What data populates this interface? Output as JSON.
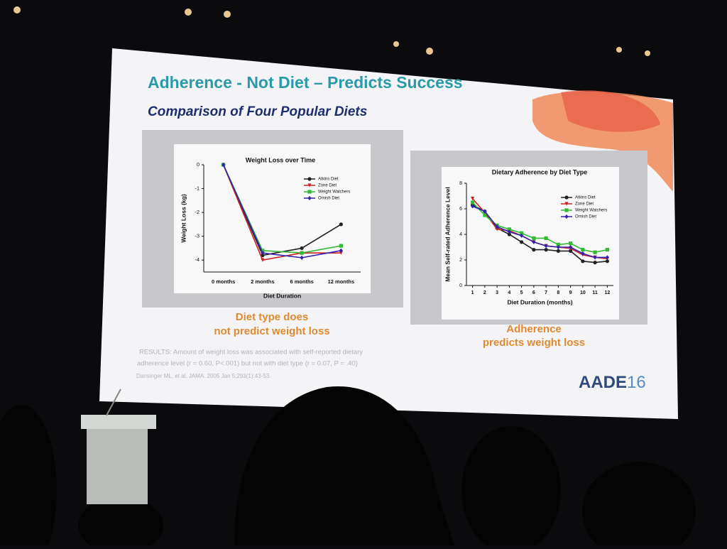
{
  "title": "Adherence - Not Diet – Predicts Success",
  "subtitle": "Comparison of Four Popular Diets",
  "caption_left": [
    "Diet type does",
    "not predict weight loss"
  ],
  "caption_right": [
    "Adherence",
    "predicts weight loss"
  ],
  "results": [
    "RESULTS: Amount of weight loss was associated with self-reported dietary",
    "adherence level (r = 0.60, P<.001) but not with diet type (r = 0.07, P = .40)"
  ],
  "citation": "Dansinger ML, et al. JAMA. 2005 Jan 5;293(1):43-53.",
  "logo": {
    "name": "AADE",
    "year": "16"
  },
  "chart_data": [
    {
      "type": "line",
      "title": "Weight Loss over Time",
      "xlabel": "Diet Duration",
      "ylabel": "Weight Loss (kg)",
      "categories": [
        "0 months",
        "2 months",
        "6 months",
        "12 months"
      ],
      "ylim": [
        -4.5,
        0
      ],
      "yticks": [
        0,
        -1,
        -2,
        -3,
        -4
      ],
      "legend": "upper right",
      "series": [
        {
          "name": "Atkins Diet",
          "color": "#222222",
          "marker": "circle",
          "values": [
            0,
            -3.8,
            -3.5,
            -2.5
          ]
        },
        {
          "name": "Zone Diet",
          "color": "#cc2222",
          "marker": "triangle",
          "values": [
            0,
            -4.0,
            -3.7,
            -3.7
          ]
        },
        {
          "name": "Weight Watchers",
          "color": "#33bb33",
          "marker": "square",
          "values": [
            0,
            -3.6,
            -3.7,
            -3.4
          ]
        },
        {
          "name": "Ornish Diet",
          "color": "#3322aa",
          "marker": "diamond",
          "values": [
            0,
            -3.7,
            -3.9,
            -3.6
          ]
        }
      ]
    },
    {
      "type": "line",
      "title": "Dietary Adherence by Diet Type",
      "xlabel": "Diet Duration (months)",
      "ylabel": "Mean Self-rated Adherence Level",
      "x": [
        1,
        2,
        3,
        4,
        5,
        6,
        7,
        8,
        9,
        10,
        11,
        12
      ],
      "xlim": [
        0.5,
        12.5
      ],
      "xticks": [
        1,
        2,
        3,
        4,
        5,
        6,
        7,
        8,
        9,
        10,
        11,
        12
      ],
      "ylim": [
        0,
        8
      ],
      "yticks": [
        0,
        2,
        4,
        6,
        8
      ],
      "legend": "upper right",
      "series": [
        {
          "name": "Atkins Diet",
          "color": "#222222",
          "marker": "circle",
          "values": [
            6.3,
            5.8,
            4.5,
            4.0,
            3.4,
            2.8,
            2.8,
            2.7,
            2.7,
            1.9,
            1.8,
            1.9
          ]
        },
        {
          "name": "Zone Diet",
          "color": "#cc2222",
          "marker": "triangle",
          "values": [
            6.8,
            5.7,
            4.4,
            4.3,
            3.9,
            3.4,
            3.1,
            3.0,
            2.9,
            2.4,
            2.2,
            2.1
          ]
        },
        {
          "name": "Weight Watchers",
          "color": "#33bb33",
          "marker": "square",
          "values": [
            6.5,
            5.5,
            4.7,
            4.4,
            4.1,
            3.7,
            3.7,
            3.2,
            3.3,
            2.8,
            2.6,
            2.8
          ]
        },
        {
          "name": "Ornish Diet",
          "color": "#3322aa",
          "marker": "diamond",
          "values": [
            6.2,
            5.8,
            4.6,
            4.2,
            3.9,
            3.4,
            3.1,
            3.0,
            3.0,
            2.5,
            2.2,
            2.2
          ]
        }
      ]
    }
  ]
}
